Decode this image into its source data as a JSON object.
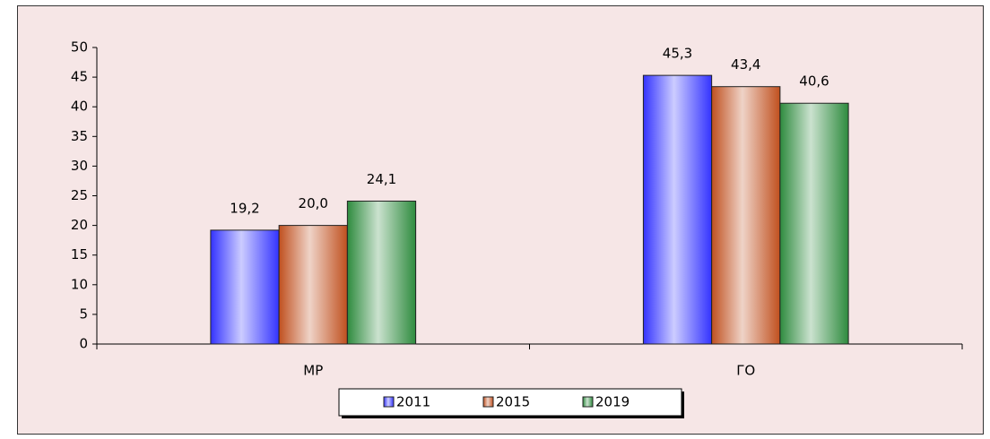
{
  "chart_data": {
    "type": "bar",
    "categories": [
      "МР",
      "ГО"
    ],
    "series": [
      {
        "name": "2011",
        "color": "#3333ff",
        "values": [
          19.2,
          45.3
        ],
        "value_labels": [
          "19,2",
          "45,3"
        ]
      },
      {
        "name": "2015",
        "color": "#c0501f",
        "values": [
          20.0,
          43.4
        ],
        "value_labels": [
          "20,0",
          "43,4"
        ]
      },
      {
        "name": "2019",
        "color": "#2e8b3e",
        "values": [
          24.1,
          40.6
        ],
        "value_labels": [
          "24,1",
          "40,6"
        ]
      }
    ],
    "ylim": [
      0,
      50
    ],
    "yticks": [
      0,
      5,
      10,
      15,
      20,
      25,
      30,
      35,
      40,
      45,
      50
    ],
    "legend": "bottom"
  }
}
